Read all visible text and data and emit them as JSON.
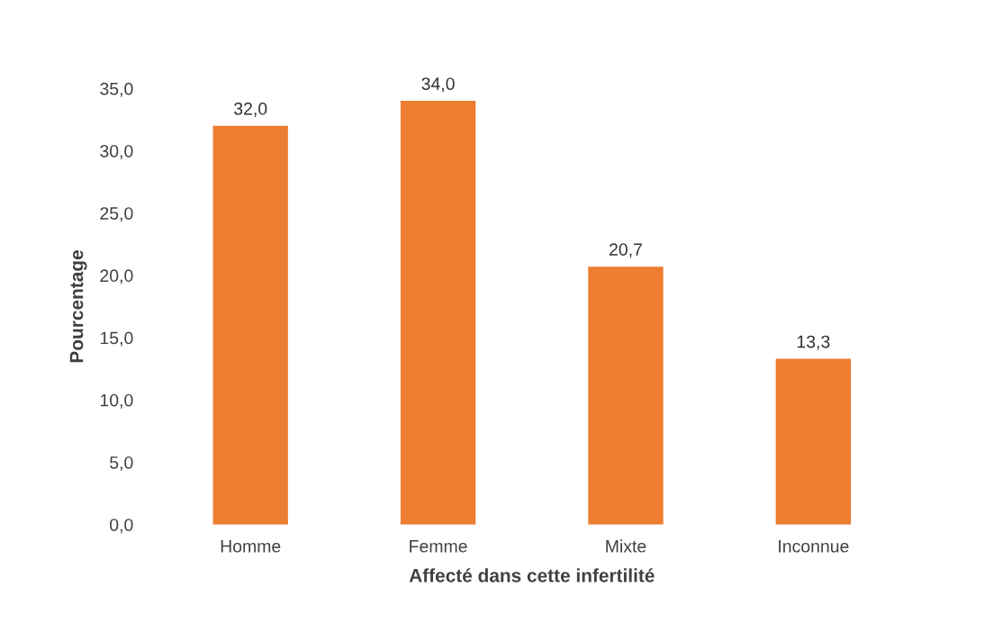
{
  "chart_data": {
    "type": "bar",
    "xlabel": "Affecté dans cette infertilité",
    "ylabel": "Pourcentage",
    "categories": [
      "Homme",
      "Femme",
      "Mixte",
      "Inconnue"
    ],
    "values": [
      32.0,
      34.0,
      20.7,
      13.3
    ],
    "value_labels": [
      "32,0",
      "34,0",
      "20,7",
      "13,3"
    ],
    "color": "#ed7d31",
    "ylim": [
      0,
      35
    ],
    "yticks": [
      {
        "value": 0,
        "label": "0,0"
      },
      {
        "value": 5,
        "label": "5,0"
      },
      {
        "value": 10,
        "label": "10,0"
      },
      {
        "value": 15,
        "label": "15,0"
      },
      {
        "value": 20,
        "label": "20,0"
      },
      {
        "value": 25,
        "label": "25,0"
      },
      {
        "value": 30,
        "label": "30,0"
      },
      {
        "value": 35,
        "label": "35,0"
      }
    ],
    "grid": false,
    "legend": false
  }
}
